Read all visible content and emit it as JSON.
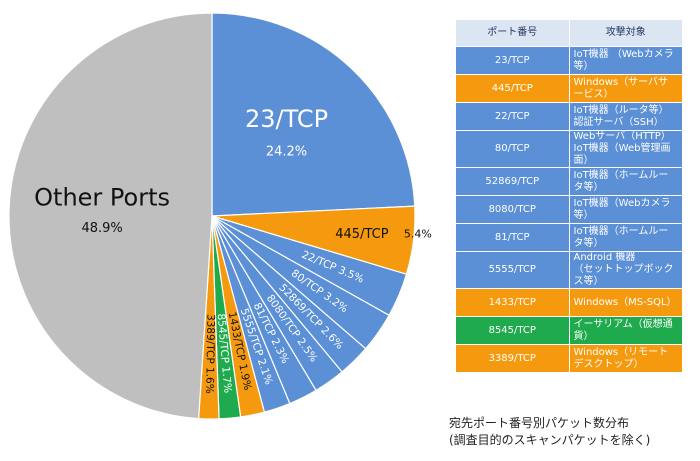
{
  "chart_data": {
    "type": "pie",
    "start_angle_deg": 0,
    "direction": "clockwise",
    "slices": [
      {
        "label": "23/TCP",
        "value": 24.2,
        "pct_label": "24.2%",
        "color": "#5b8fd6",
        "style": "big"
      },
      {
        "label": "445/TCP",
        "value": 5.4,
        "pct_label": "5.4%",
        "color": "#f59a0e",
        "style": "mid"
      },
      {
        "label": "22/TCP",
        "value": 3.5,
        "pct_label": "3.5%",
        "color": "#5b8fd6",
        "style": "small"
      },
      {
        "label": "80/TCP",
        "value": 3.2,
        "pct_label": "3.2%",
        "color": "#5b8fd6",
        "style": "small"
      },
      {
        "label": "52869/TCP",
        "value": 2.6,
        "pct_label": "2.6%",
        "color": "#5b8fd6",
        "style": "small"
      },
      {
        "label": "8080/TCP",
        "value": 2.5,
        "pct_label": "2.5%",
        "color": "#5b8fd6",
        "style": "small"
      },
      {
        "label": "81/TCP",
        "value": 2.3,
        "pct_label": "2.3%",
        "color": "#5b8fd6",
        "style": "small"
      },
      {
        "label": "5555/TCP",
        "value": 2.1,
        "pct_label": "2.1%",
        "color": "#5b8fd6",
        "style": "small"
      },
      {
        "label": "1433/TCP",
        "value": 1.9,
        "pct_label": "1.9%",
        "color": "#f59a0e",
        "style": "dark"
      },
      {
        "label": "8545/TCP",
        "value": 1.7,
        "pct_label": "1.7%",
        "color": "#1faa4d",
        "style": "small"
      },
      {
        "label": "3389/TCP",
        "value": 1.6,
        "pct_label": "1.6%",
        "color": "#f59a0e",
        "style": "dark"
      },
      {
        "label": "Other Ports",
        "value": 48.9,
        "pct_label": "48.9%",
        "color": "#bfbfbf",
        "style": "other"
      }
    ]
  },
  "table": {
    "header": {
      "port": "ポート番号",
      "target": "攻撃対象",
      "bg": "#dce6f2"
    },
    "rows": [
      {
        "port": "23/TCP",
        "target": "IoT機器 （Webカメラ等）",
        "color": "#5b8fd6"
      },
      {
        "port": "445/TCP",
        "target": "Windows（サーバサービス）",
        "color": "#f59a0e"
      },
      {
        "port": "22/TCP",
        "target": "IoT機器（ルータ等）\n認証サーバ（SSH）",
        "color": "#5b8fd6"
      },
      {
        "port": "80/TCP",
        "target": "Webサーバ（HTTP）\nIoT機器（Web管理画面）",
        "color": "#5b8fd6"
      },
      {
        "port": "52869/TCP",
        "target": "IoT機器（ホームルータ等）",
        "color": "#5b8fd6"
      },
      {
        "port": "8080/TCP",
        "target": "IoT機器（Webカメラ等）",
        "color": "#5b8fd6"
      },
      {
        "port": "81/TCP",
        "target": "IoT機器（ホームルータ等）",
        "color": "#5b8fd6"
      },
      {
        "port": "5555/TCP",
        "target": "Android 機器\n（セットトップボックス等）",
        "color": "#5b8fd6"
      },
      {
        "port": "1433/TCP",
        "target": "Windows（MS-SQL）",
        "color": "#f59a0e"
      },
      {
        "port": "8545/TCP",
        "target": "イーサリアム（仮想通貨）",
        "color": "#1faa4d"
      },
      {
        "port": "3389/TCP",
        "target": "Windows（リモートデスクトップ）",
        "color": "#f59a0e"
      }
    ]
  },
  "caption": {
    "line1": "宛先ポート番号別パケット数分布",
    "line2": "(調査目的のスキャンパケットを除く)"
  }
}
